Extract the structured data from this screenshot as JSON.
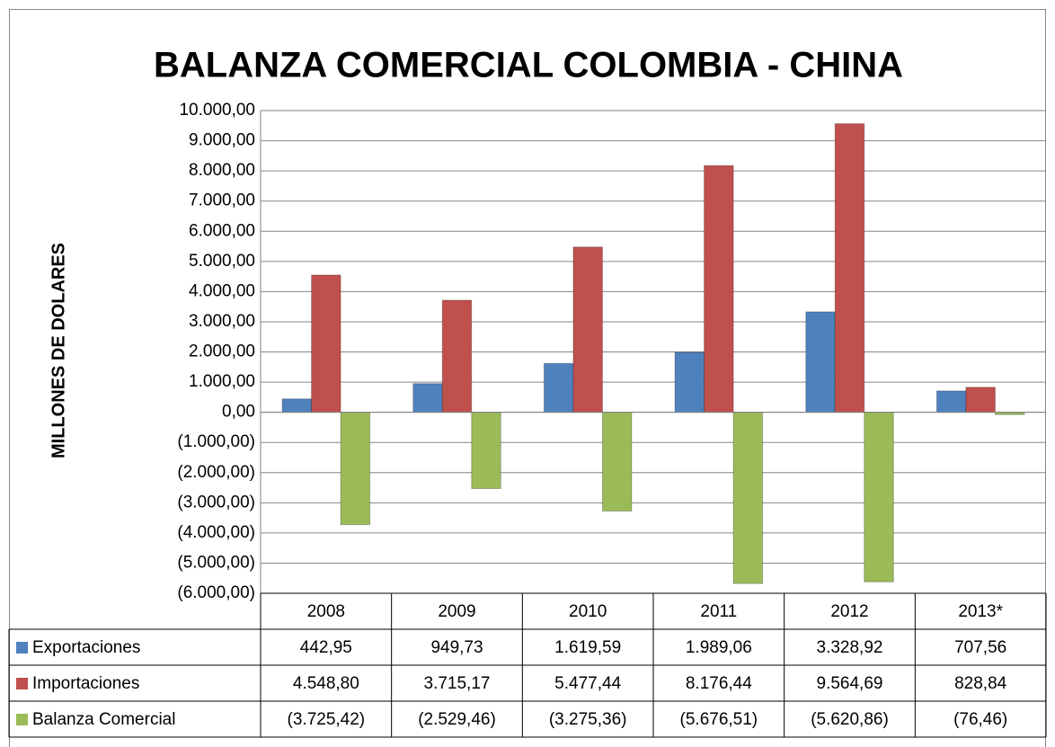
{
  "chart_data": {
    "type": "bar",
    "title": "BALANZA COMERCIAL COLOMBIA - CHINA",
    "y_label": "MILLONES DE DOLARES",
    "categories": [
      "2008",
      "2009",
      "2010",
      "2011",
      "2012",
      "2013*"
    ],
    "series": [
      {
        "name": "Exportaciones",
        "color": "#4f81bd",
        "values": [
          442.95,
          949.73,
          1619.59,
          1989.06,
          3328.92,
          707.56
        ],
        "value_labels": [
          "442,95",
          "949,73",
          "1.619,59",
          "1.989,06",
          "3.328,92",
          "707,56"
        ]
      },
      {
        "name": "Importaciones",
        "color": "#c0504d",
        "values": [
          4548.8,
          3715.17,
          5477.44,
          8176.44,
          9564.69,
          828.84
        ],
        "value_labels": [
          "4.548,80",
          "3.715,17",
          "5.477,44",
          "8.176,44",
          "9.564,69",
          "828,84"
        ]
      },
      {
        "name": "Balanza Comercial",
        "color": "#9bbb59",
        "values": [
          -3725.42,
          -2529.46,
          -3275.36,
          -5676.51,
          -5620.86,
          -76.46
        ],
        "value_labels": [
          "(3.725,42)",
          "(2.529,46)",
          "(3.275,36)",
          "(5.676,51)",
          "(5.620,86)",
          "(76,46)"
        ]
      }
    ],
    "ylim": [
      -6000,
      10000
    ],
    "yticks": [
      {
        "value": -6000,
        "label": "(6.000,00)"
      },
      {
        "value": -5000,
        "label": "(5.000,00)"
      },
      {
        "value": -4000,
        "label": "(4.000,00)"
      },
      {
        "value": -3000,
        "label": "(3.000,00)"
      },
      {
        "value": -2000,
        "label": "(2.000,00)"
      },
      {
        "value": -1000,
        "label": "(1.000,00)"
      },
      {
        "value": 0,
        "label": "0,00"
      },
      {
        "value": 1000,
        "label": "1.000,00"
      },
      {
        "value": 2000,
        "label": "2.000,00"
      },
      {
        "value": 3000,
        "label": "3.000,00"
      },
      {
        "value": 4000,
        "label": "4.000,00"
      },
      {
        "value": 5000,
        "label": "5.000,00"
      },
      {
        "value": 6000,
        "label": "6.000,00"
      },
      {
        "value": 7000,
        "label": "7.000,00"
      },
      {
        "value": 8000,
        "label": "8.000,00"
      },
      {
        "value": 9000,
        "label": "9.000,00"
      },
      {
        "value": 10000,
        "label": "10.000,00"
      }
    ],
    "grid": true
  }
}
